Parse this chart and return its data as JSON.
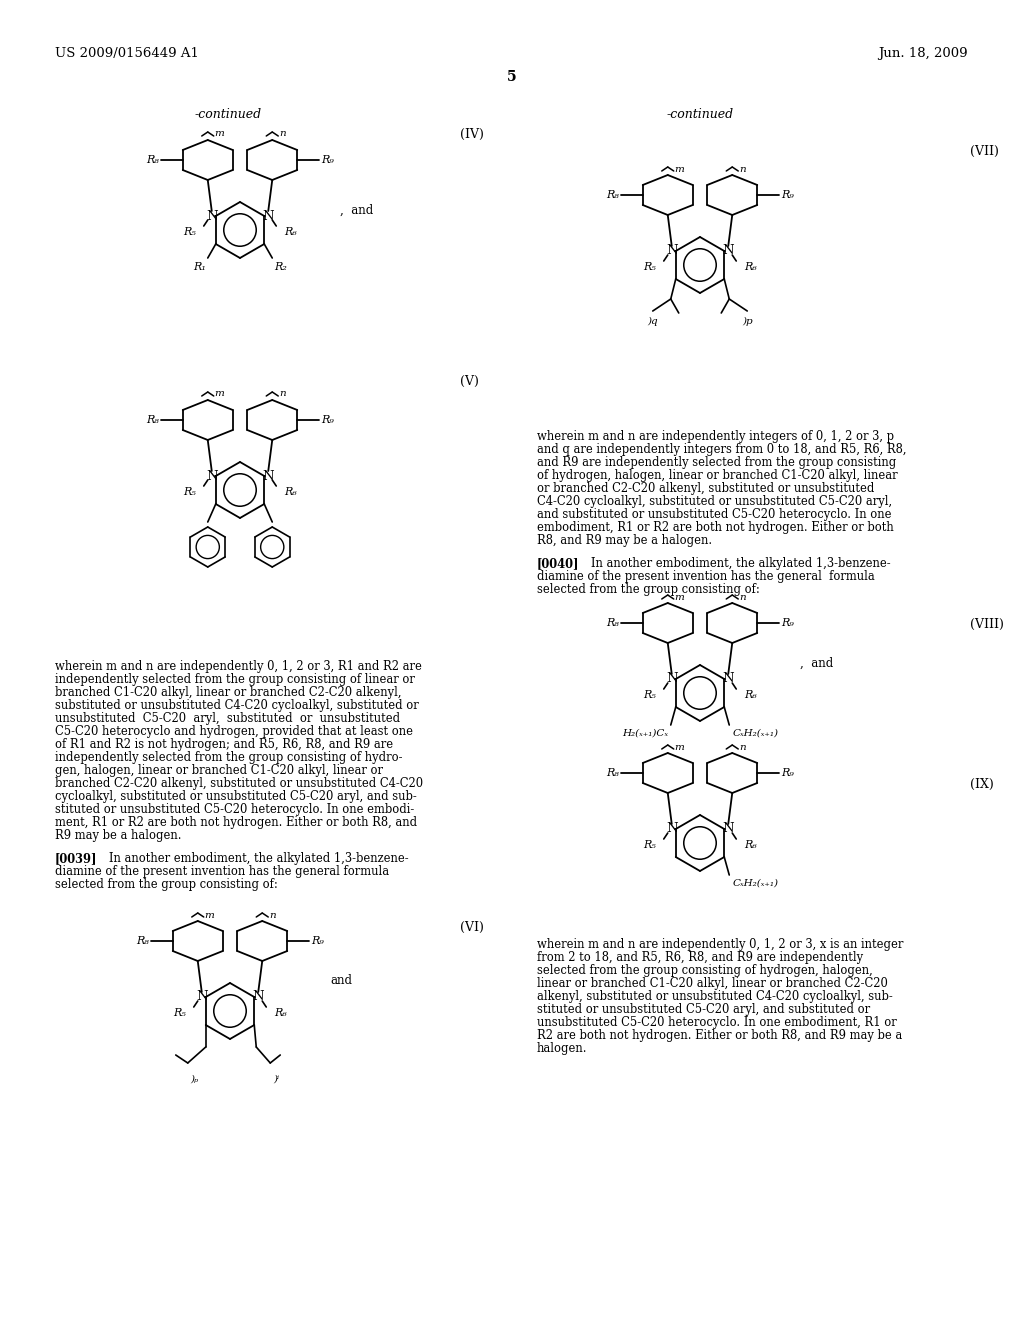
{
  "page_header_left": "US 2009/0156449 A1",
  "page_header_right": "Jun. 18, 2009",
  "page_number": "5",
  "bg_color": "#ffffff",
  "fig_width": 10.24,
  "fig_height": 13.2,
  "dpi": 100,
  "continued_label": "-continued",
  "formula_IV_label": "(IV)",
  "formula_V_label": "(V)",
  "formula_VI_label": "(VI)",
  "formula_VII_label": "(VII)",
  "formula_VIII_label": "(VIII)",
  "formula_IX_label": "(IX)",
  "left_text_V": "wherein m and n are independently 0, 1, 2 or 3, R1 and R2 are\nindependently selected from the group consisting of linear or\nbranched C1-C20 alkyl, linear or branched C2-C20 alkenyl,\nsubstituted or unsubstituted C4-C20 cycloalkyl, substituted or\nunsubstituted  C5-C20  aryl,  substituted  or  unsubstituted\nC5-C20 heterocyclo and hydrogen, provided that at least one\nof R1 and R2 is not hydrogen; and R5, R6, R8, and R9 are\nindependently selected from the group consisting of hydro-\ngen, halogen, linear or branched C1-C20 alkyl, linear or\nbranched C2-C20 alkenyl, substituted or unsubstituted C4-C20\ncycloalkyl, substituted or unsubstituted C5-C20 aryl, and sub-\nstituted or unsubstituted C5-C20 heterocyclo. In one embodi-\nment, R1 or R2 are both not hydrogen. Either or both R8, and\nR9 may be a halogen.",
  "para_0039": "[0039]    In another embodiment, the alkylated 1,3-benzene-\ndiamine of the present invention has the general formula\nselected from the group consisting of:",
  "right_text_VII": "wherein m and n are independently integers of 0, 1, 2 or 3, p\nand q are independently integers from 0 to 18, and R5, R6, R8,\nand R9 are independently selected from the group consisting\nof hydrogen, halogen, linear or branched C1-C20 alkyl, linear\nor branched C2-C20 alkenyl, substituted or unsubstituted\nC4-C20 cycloalkyl, substituted or unsubstituted C5-C20 aryl,\nand substituted or unsubstituted C5-C20 heterocyclo. In one\nembodiment, R1 or R2 are both not hydrogen. Either or both\nR8, and R9 may be a halogen.",
  "para_0040": "[0040]    In another embodiment, the alkylated 1,3-benzene-\ndiamine of the present invention has the general  formula\nselected from the group consisting of:",
  "right_text_IX": "wherein m and n are independently 0, 1, 2 or 3, x is an integer\nfrom 2 to 18, and R5, R6, R8, and R9 are independently\nselected from the group consisting of hydrogen, halogen,\nlinear or branched C1-C20 alkyl, linear or branched C2-C20\nalkenyl, substituted or unsubstituted C4-C20 cycloalkyl, sub-\nstituted or unsubstituted C5-C20 aryl, and substituted or\nunsubstituted C5-C20 heterocyclo. In one embodiment, R1 or\nR2 are both not hydrogen. Either or both R8, and R9 may be a\nhalogen."
}
